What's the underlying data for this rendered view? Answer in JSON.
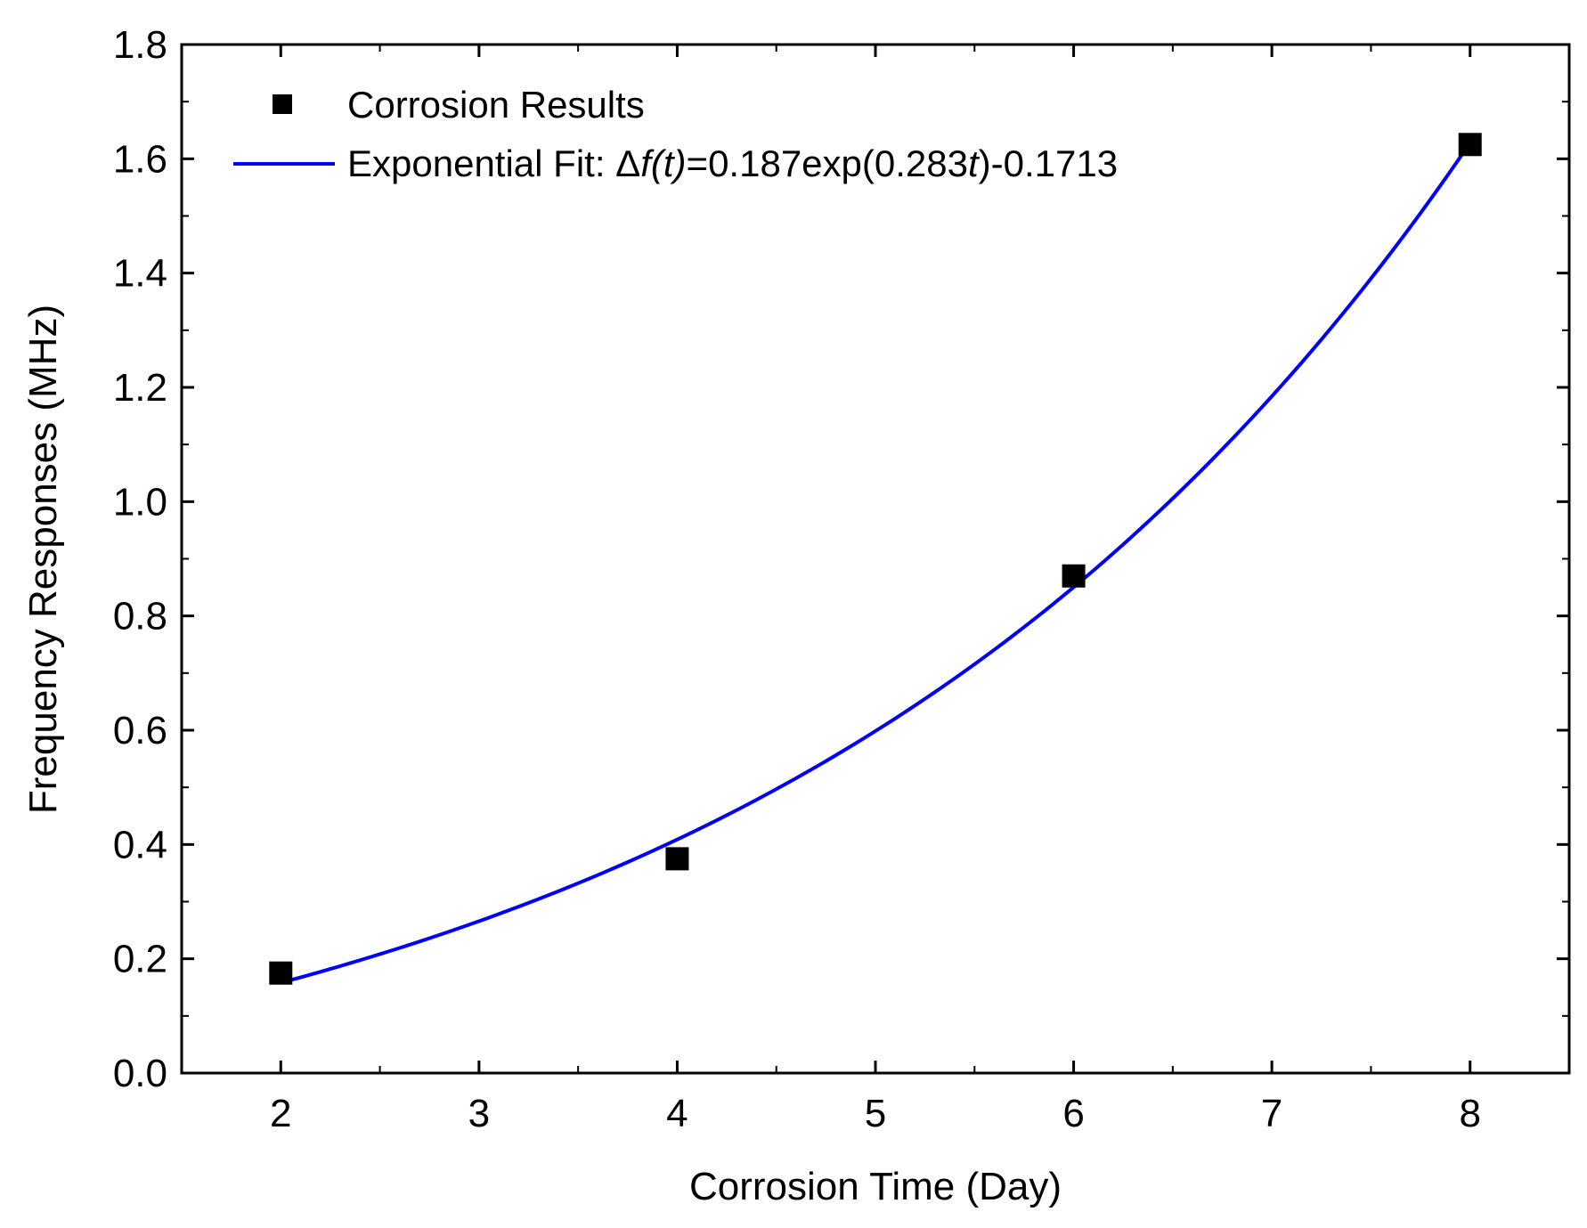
{
  "chart_data": {
    "type": "scatter",
    "title": "",
    "xlabel": "Corrosion Time (Day)",
    "ylabel": "Frequency Responses (MHz)",
    "xlim": [
      1.5,
      8.5
    ],
    "ylim": [
      0.0,
      1.8
    ],
    "x_major_ticks": [
      2,
      3,
      4,
      5,
      6,
      7,
      8
    ],
    "x_tick_labels": [
      "2",
      "3",
      "4",
      "5",
      "6",
      "7",
      "8"
    ],
    "y_major_ticks": [
      0.0,
      0.2,
      0.4,
      0.6,
      0.8,
      1.0,
      1.2,
      1.4,
      1.6,
      1.8
    ],
    "y_tick_labels": [
      "0.0",
      "0.2",
      "0.4",
      "0.6",
      "0.8",
      "1.0",
      "1.2",
      "1.4",
      "1.6",
      "1.8"
    ],
    "grid": false,
    "legend_position": "top-left",
    "series": [
      {
        "name": "Corrosion Results",
        "kind": "scatter",
        "marker": "square",
        "color": "#000000",
        "x": [
          2,
          4,
          6,
          8
        ],
        "y": [
          0.175,
          0.375,
          0.87,
          1.625
        ]
      },
      {
        "name": "Exponential Fit",
        "kind": "line",
        "color": "#0000ff",
        "equation": {
          "a": 0.187,
          "b": 0.283,
          "c": -0.1713
        },
        "x_range": [
          2,
          8
        ]
      }
    ],
    "legend": [
      {
        "label": "Corrosion Results"
      },
      {
        "label_parts": [
          {
            "text": "Exponential Fit: ",
            "italic": false
          },
          {
            "text": "Δ",
            "italic": false
          },
          {
            "text": "f(t)",
            "italic": true
          },
          {
            "text": "=0.187exp(0.283",
            "italic": false
          },
          {
            "text": "t",
            "italic": true
          },
          {
            "text": ")-0.1713",
            "italic": false
          }
        ]
      }
    ]
  }
}
